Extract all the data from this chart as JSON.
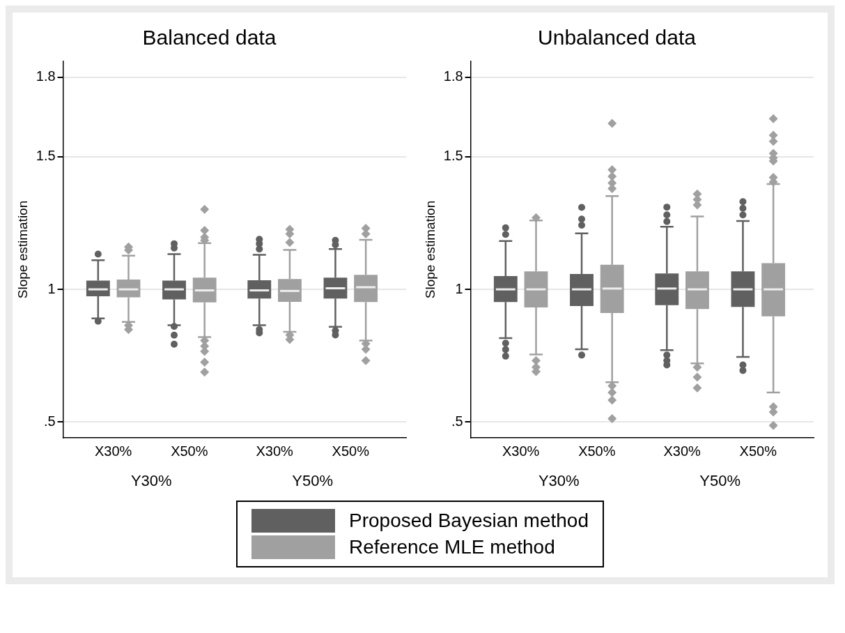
{
  "chart_data": [
    {
      "type": "box",
      "title": "Balanced data",
      "ylabel": "Slope estimation",
      "categories": [
        "X30%",
        "X50%",
        "X30%",
        "X50%"
      ],
      "annotations": [
        "Y30%",
        "Y50%"
      ],
      "ylim": [
        0.44,
        1.86
      ],
      "yticks": [
        {
          "value": 0.5,
          "label": ".5"
        },
        1,
        1.5,
        1.8
      ],
      "grid": "y",
      "legend": "bottom",
      "series": [
        {
          "name": "Proposed Bayesian method",
          "color": "#606060",
          "marker": "circle",
          "boxes": [
            {
              "low": 0.89,
              "q1": 0.974,
              "median": 1.0,
              "q3": 1.033,
              "high": 1.11,
              "outliers": [
                1.133,
                0.88
              ]
            },
            {
              "low": 0.865,
              "q1": 0.962,
              "median": 1.0,
              "q3": 1.033,
              "high": 1.133,
              "outliers": [
                1.172,
                1.156,
                0.86,
                0.827,
                0.793
              ]
            },
            {
              "low": 0.865,
              "q1": 0.965,
              "median": 0.996,
              "q3": 1.034,
              "high": 1.13,
              "outliers": [
                1.189,
                1.172,
                1.152,
                0.848,
                0.836
              ]
            },
            {
              "low": 0.859,
              "q1": 0.965,
              "median": 1.004,
              "q3": 1.044,
              "high": 1.152,
              "outliers": [
                1.185,
                1.168,
                0.844,
                0.828
              ]
            }
          ]
        },
        {
          "name": "Reference MLE method",
          "color": "#a0a0a0",
          "marker": "diamond",
          "boxes": [
            {
              "low": 0.877,
              "q1": 0.97,
              "median": 1.0,
              "q3": 1.037,
              "high": 1.127,
              "outliers": [
                1.148,
                1.16,
                0.864,
                0.848
              ]
            },
            {
              "low": 0.82,
              "q1": 0.951,
              "median": 0.996,
              "q3": 1.044,
              "high": 1.174,
              "outliers": [
                1.302,
                1.222,
                1.197,
                1.185,
                0.807,
                0.786,
                0.766,
                0.725,
                0.688
              ]
            },
            {
              "low": 0.84,
              "q1": 0.953,
              "median": 0.994,
              "q3": 1.039,
              "high": 1.149,
              "outliers": [
                1.226,
                1.209,
                1.177,
                0.828,
                0.811
              ]
            },
            {
              "low": 0.807,
              "q1": 0.952,
              "median": 1.008,
              "q3": 1.055,
              "high": 1.187,
              "outliers": [
                1.23,
                1.209,
                0.795,
                0.774,
                0.731
              ]
            }
          ]
        }
      ]
    },
    {
      "type": "box",
      "title": "Unbalanced data",
      "ylabel": "Slope estimation",
      "categories": [
        "X30%",
        "X50%",
        "X30%",
        "X50%"
      ],
      "annotations": [
        "Y30%",
        "Y50%"
      ],
      "ylim": [
        0.44,
        1.86
      ],
      "yticks": [
        {
          "value": 0.5,
          "label": ".5"
        },
        1,
        1.5,
        1.8
      ],
      "grid": "y",
      "series": [
        {
          "name": "Proposed Bayesian method",
          "color": "#606060",
          "marker": "circle",
          "boxes": [
            {
              "low": 0.816,
              "q1": 0.952,
              "median": 1.0,
              "q3": 1.05,
              "high": 1.182,
              "outliers": [
                1.232,
                1.207,
                0.797,
                0.773,
                0.748
              ]
            },
            {
              "low": 0.774,
              "q1": 0.937,
              "median": 1.0,
              "q3": 1.058,
              "high": 1.211,
              "outliers": [
                1.309,
                1.265,
                1.242,
                0.752
              ]
            },
            {
              "low": 0.771,
              "q1": 0.94,
              "median": 1.003,
              "q3": 1.06,
              "high": 1.236,
              "outliers": [
                1.31,
                1.281,
                1.256,
                0.752,
                0.731,
                0.715
              ]
            },
            {
              "low": 0.745,
              "q1": 0.934,
              "median": 1.0,
              "q3": 1.068,
              "high": 1.258,
              "outliers": [
                1.331,
                1.306,
                1.281,
                0.715,
                0.694
              ]
            }
          ]
        },
        {
          "name": "Reference MLE method",
          "color": "#a0a0a0",
          "marker": "diamond",
          "boxes": [
            {
              "low": 0.754,
              "q1": 0.932,
              "median": 1.0,
              "q3": 1.068,
              "high": 1.26,
              "outliers": [
                1.27,
                0.731,
                0.706,
                0.69
              ]
            },
            {
              "low": 0.65,
              "q1": 0.911,
              "median": 1.003,
              "q3": 1.093,
              "high": 1.352,
              "outliers": [
                1.626,
                1.451,
                1.426,
                1.401,
                1.38,
                0.636,
                0.611,
                0.582,
                0.512
              ]
            },
            {
              "low": 0.721,
              "q1": 0.926,
              "median": 1.0,
              "q3": 1.068,
              "high": 1.275,
              "outliers": [
                1.36,
                1.339,
                1.318,
                0.706,
                0.669,
                0.628
              ]
            },
            {
              "low": 0.611,
              "q1": 0.898,
              "median": 1.0,
              "q3": 1.099,
              "high": 1.397,
              "outliers": [
                1.644,
                1.581,
                1.558,
                1.513,
                1.496,
                1.484,
                1.422,
                1.405,
                0.557,
                0.537,
                0.487
              ]
            }
          ]
        }
      ]
    }
  ]
}
